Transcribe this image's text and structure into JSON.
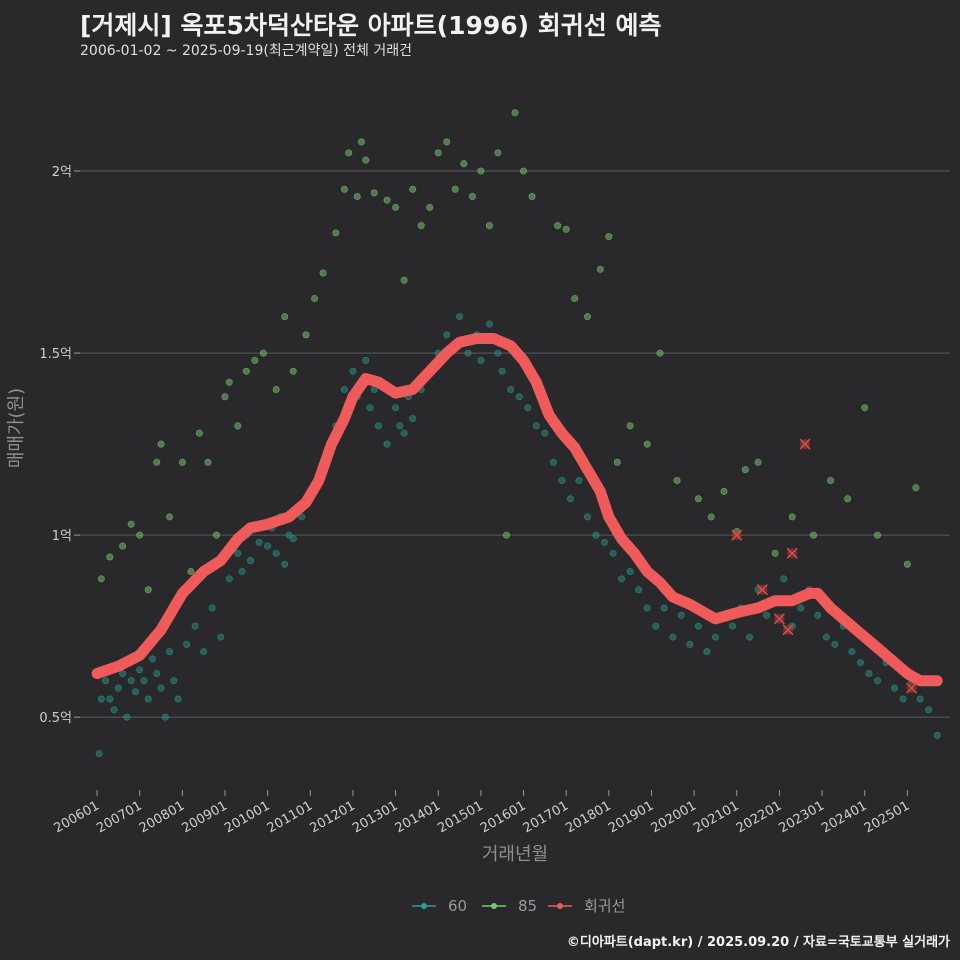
{
  "header": {
    "title": "[거제시] 옥포5차덕산타운 아파트(1996) 회귀선 예측",
    "subtitle": "2006-01-02 ~ 2025-09-19(최근계약일) 전체 거래건"
  },
  "footer": {
    "credit": "©디아파트(dapt.kr) / 2025.09.20 / 자료=국토교통부 실거래가"
  },
  "chart_data": {
    "type": "scatter",
    "xlabel": "거래년월",
    "ylabel": "매매가(원)",
    "x_ticks": [
      "200601",
      "200701",
      "200801",
      "200901",
      "201001",
      "201101",
      "201201",
      "201301",
      "201401",
      "201501",
      "201601",
      "201701",
      "201801",
      "201901",
      "202001",
      "202101",
      "202201",
      "202301",
      "202401",
      "202501"
    ],
    "y_ticks": [
      {
        "value": 0.5,
        "label": "0.5억"
      },
      {
        "value": 1.0,
        "label": "1억"
      },
      {
        "value": 1.5,
        "label": "1.5억"
      },
      {
        "value": 2.0,
        "label": "2억"
      }
    ],
    "xlim": [
      2005.6,
      2026.0
    ],
    "ylim": [
      0.3,
      2.25
    ],
    "grid": true,
    "legend_position": "bottom",
    "colors": {
      "s60": "#2a9d8f",
      "s85": "#7bc96f",
      "regression": "#ef5b5b"
    },
    "series": [
      {
        "name": "60",
        "type": "scatter",
        "points": [
          [
            2006.05,
            0.4
          ],
          [
            2006.1,
            0.55
          ],
          [
            2006.2,
            0.6
          ],
          [
            2006.3,
            0.55
          ],
          [
            2006.4,
            0.52
          ],
          [
            2006.5,
            0.58
          ],
          [
            2006.6,
            0.62
          ],
          [
            2006.7,
            0.5
          ],
          [
            2006.8,
            0.6
          ],
          [
            2006.9,
            0.57
          ],
          [
            2007.0,
            0.63
          ],
          [
            2007.1,
            0.6
          ],
          [
            2007.2,
            0.55
          ],
          [
            2007.3,
            0.66
          ],
          [
            2007.4,
            0.62
          ],
          [
            2007.5,
            0.58
          ],
          [
            2007.6,
            0.5
          ],
          [
            2007.7,
            0.68
          ],
          [
            2007.8,
            0.6
          ],
          [
            2007.9,
            0.55
          ],
          [
            2008.1,
            0.7
          ],
          [
            2008.3,
            0.75
          ],
          [
            2008.5,
            0.68
          ],
          [
            2008.7,
            0.8
          ],
          [
            2008.9,
            0.72
          ],
          [
            2009.1,
            0.88
          ],
          [
            2009.3,
            0.95
          ],
          [
            2009.4,
            0.9
          ],
          [
            2009.5,
            1.0
          ],
          [
            2009.6,
            0.93
          ],
          [
            2009.8,
            0.98
          ],
          [
            2010.0,
            0.97
          ],
          [
            2010.1,
            1.02
          ],
          [
            2010.2,
            0.95
          ],
          [
            2010.3,
            1.05
          ],
          [
            2010.4,
            0.92
          ],
          [
            2010.5,
            1.0
          ],
          [
            2010.6,
            0.99
          ],
          [
            2010.8,
            1.05
          ],
          [
            2011.0,
            1.1
          ],
          [
            2011.2,
            1.15
          ],
          [
            2011.4,
            1.2
          ],
          [
            2011.6,
            1.3
          ],
          [
            2011.8,
            1.4
          ],
          [
            2012.0,
            1.45
          ],
          [
            2012.1,
            1.38
          ],
          [
            2012.2,
            1.42
          ],
          [
            2012.3,
            1.48
          ],
          [
            2012.4,
            1.35
          ],
          [
            2012.5,
            1.4
          ],
          [
            2012.6,
            1.3
          ],
          [
            2012.8,
            1.25
          ],
          [
            2013.0,
            1.35
          ],
          [
            2013.1,
            1.3
          ],
          [
            2013.2,
            1.28
          ],
          [
            2013.3,
            1.38
          ],
          [
            2013.4,
            1.32
          ],
          [
            2013.6,
            1.4
          ],
          [
            2013.8,
            1.45
          ],
          [
            2014.0,
            1.5
          ],
          [
            2014.2,
            1.55
          ],
          [
            2014.4,
            1.52
          ],
          [
            2014.5,
            1.6
          ],
          [
            2014.7,
            1.5
          ],
          [
            2014.9,
            1.55
          ],
          [
            2015.0,
            1.48
          ],
          [
            2015.2,
            1.58
          ],
          [
            2015.4,
            1.5
          ],
          [
            2015.5,
            1.45
          ],
          [
            2015.7,
            1.4
          ],
          [
            2015.9,
            1.38
          ],
          [
            2016.1,
            1.35
          ],
          [
            2016.3,
            1.3
          ],
          [
            2016.5,
            1.28
          ],
          [
            2016.7,
            1.2
          ],
          [
            2016.9,
            1.15
          ],
          [
            2017.1,
            1.1
          ],
          [
            2017.3,
            1.15
          ],
          [
            2017.5,
            1.05
          ],
          [
            2017.7,
            1.0
          ],
          [
            2017.9,
            0.98
          ],
          [
            2018.1,
            0.95
          ],
          [
            2018.3,
            0.88
          ],
          [
            2018.5,
            0.9
          ],
          [
            2018.7,
            0.85
          ],
          [
            2018.9,
            0.8
          ],
          [
            2019.1,
            0.75
          ],
          [
            2019.3,
            0.8
          ],
          [
            2019.5,
            0.72
          ],
          [
            2019.7,
            0.78
          ],
          [
            2019.9,
            0.7
          ],
          [
            2020.1,
            0.75
          ],
          [
            2020.3,
            0.68
          ],
          [
            2020.5,
            0.72
          ],
          [
            2020.7,
            0.78
          ],
          [
            2020.9,
            0.75
          ],
          [
            2021.1,
            0.8
          ],
          [
            2021.3,
            0.72
          ],
          [
            2021.5,
            0.85
          ],
          [
            2021.7,
            0.78
          ],
          [
            2021.9,
            0.82
          ],
          [
            2022.1,
            0.88
          ],
          [
            2022.3,
            0.75
          ],
          [
            2022.5,
            0.8
          ],
          [
            2022.7,
            0.85
          ],
          [
            2022.9,
            0.78
          ],
          [
            2023.1,
            0.72
          ],
          [
            2023.3,
            0.7
          ],
          [
            2023.5,
            0.75
          ],
          [
            2023.7,
            0.68
          ],
          [
            2023.9,
            0.65
          ],
          [
            2024.1,
            0.62
          ],
          [
            2024.3,
            0.6
          ],
          [
            2024.5,
            0.65
          ],
          [
            2024.7,
            0.58
          ],
          [
            2024.9,
            0.55
          ],
          [
            2025.1,
            0.6
          ],
          [
            2025.3,
            0.55
          ],
          [
            2025.5,
            0.52
          ],
          [
            2025.7,
            0.45
          ]
        ]
      },
      {
        "name": "85",
        "type": "scatter",
        "points": [
          [
            2006.1,
            0.88
          ],
          [
            2006.3,
            0.94
          ],
          [
            2006.6,
            0.97
          ],
          [
            2006.8,
            1.03
          ],
          [
            2007.0,
            1.0
          ],
          [
            2007.2,
            0.85
          ],
          [
            2007.4,
            1.2
          ],
          [
            2007.5,
            1.25
          ],
          [
            2007.7,
            1.05
          ],
          [
            2008.0,
            1.2
          ],
          [
            2008.2,
            0.9
          ],
          [
            2008.4,
            1.28
          ],
          [
            2008.6,
            1.2
          ],
          [
            2008.8,
            1.0
          ],
          [
            2009.0,
            1.38
          ],
          [
            2009.1,
            1.42
          ],
          [
            2009.3,
            1.3
          ],
          [
            2009.5,
            1.45
          ],
          [
            2009.7,
            1.48
          ],
          [
            2009.9,
            1.5
          ],
          [
            2010.2,
            1.4
          ],
          [
            2010.4,
            1.6
          ],
          [
            2010.6,
            1.45
          ],
          [
            2010.9,
            1.55
          ],
          [
            2011.1,
            1.65
          ],
          [
            2011.3,
            1.72
          ],
          [
            2011.6,
            1.83
          ],
          [
            2011.8,
            1.95
          ],
          [
            2011.9,
            2.05
          ],
          [
            2012.1,
            1.93
          ],
          [
            2012.2,
            2.08
          ],
          [
            2012.3,
            2.03
          ],
          [
            2012.5,
            1.94
          ],
          [
            2012.8,
            1.92
          ],
          [
            2013.0,
            1.9
          ],
          [
            2013.2,
            1.7
          ],
          [
            2013.4,
            1.95
          ],
          [
            2013.6,
            1.85
          ],
          [
            2013.8,
            1.9
          ],
          [
            2014.0,
            2.05
          ],
          [
            2014.2,
            2.08
          ],
          [
            2014.4,
            1.95
          ],
          [
            2014.6,
            2.02
          ],
          [
            2014.8,
            1.93
          ],
          [
            2015.0,
            2.0
          ],
          [
            2015.2,
            1.85
          ],
          [
            2015.4,
            2.05
          ],
          [
            2015.6,
            1.0
          ],
          [
            2015.8,
            2.16
          ],
          [
            2016.0,
            2.0
          ],
          [
            2016.2,
            1.93
          ],
          [
            2016.8,
            1.85
          ],
          [
            2017.0,
            1.84
          ],
          [
            2017.2,
            1.65
          ],
          [
            2017.5,
            1.6
          ],
          [
            2017.8,
            1.73
          ],
          [
            2018.0,
            1.82
          ],
          [
            2018.2,
            1.2
          ],
          [
            2018.5,
            1.3
          ],
          [
            2018.9,
            1.25
          ],
          [
            2019.2,
            1.5
          ],
          [
            2019.6,
            1.15
          ],
          [
            2020.1,
            1.1
          ],
          [
            2020.4,
            1.05
          ],
          [
            2020.7,
            1.12
          ],
          [
            2021.0,
            1.01
          ],
          [
            2021.2,
            1.18
          ],
          [
            2021.5,
            1.2
          ],
          [
            2021.9,
            0.95
          ],
          [
            2022.3,
            1.05
          ],
          [
            2022.8,
            1.0
          ],
          [
            2023.2,
            1.15
          ],
          [
            2023.6,
            1.1
          ],
          [
            2024.0,
            1.35
          ],
          [
            2024.3,
            1.0
          ],
          [
            2025.0,
            0.92
          ],
          [
            2025.2,
            1.13
          ]
        ]
      },
      {
        "name": "회귀선",
        "type": "line",
        "points": [
          [
            2006.0,
            0.62
          ],
          [
            2006.5,
            0.64
          ],
          [
            2007.0,
            0.67
          ],
          [
            2007.5,
            0.74
          ],
          [
            2008.0,
            0.84
          ],
          [
            2008.5,
            0.9
          ],
          [
            2008.9,
            0.93
          ],
          [
            2009.3,
            0.99
          ],
          [
            2009.6,
            1.02
          ],
          [
            2010.0,
            1.03
          ],
          [
            2010.5,
            1.05
          ],
          [
            2010.9,
            1.09
          ],
          [
            2011.2,
            1.15
          ],
          [
            2011.5,
            1.25
          ],
          [
            2011.8,
            1.32
          ],
          [
            2012.0,
            1.38
          ],
          [
            2012.3,
            1.43
          ],
          [
            2012.6,
            1.42
          ],
          [
            2013.0,
            1.39
          ],
          [
            2013.4,
            1.4
          ],
          [
            2013.8,
            1.45
          ],
          [
            2014.2,
            1.5
          ],
          [
            2014.5,
            1.53
          ],
          [
            2014.9,
            1.54
          ],
          [
            2015.3,
            1.54
          ],
          [
            2015.7,
            1.52
          ],
          [
            2016.0,
            1.48
          ],
          [
            2016.3,
            1.42
          ],
          [
            2016.6,
            1.33
          ],
          [
            2016.9,
            1.28
          ],
          [
            2017.2,
            1.24
          ],
          [
            2017.5,
            1.18
          ],
          [
            2017.8,
            1.12
          ],
          [
            2018.0,
            1.05
          ],
          [
            2018.3,
            0.99
          ],
          [
            2018.6,
            0.95
          ],
          [
            2018.9,
            0.9
          ],
          [
            2019.2,
            0.87
          ],
          [
            2019.5,
            0.83
          ],
          [
            2019.9,
            0.81
          ],
          [
            2020.2,
            0.79
          ],
          [
            2020.5,
            0.77
          ],
          [
            2020.8,
            0.78
          ],
          [
            2021.1,
            0.79
          ],
          [
            2021.5,
            0.8
          ],
          [
            2021.9,
            0.82
          ],
          [
            2022.3,
            0.82
          ],
          [
            2022.7,
            0.84
          ],
          [
            2022.9,
            0.84
          ],
          [
            2023.2,
            0.8
          ],
          [
            2023.5,
            0.77
          ],
          [
            2023.8,
            0.74
          ],
          [
            2024.1,
            0.71
          ],
          [
            2024.4,
            0.68
          ],
          [
            2024.7,
            0.65
          ],
          [
            2025.0,
            0.62
          ],
          [
            2025.3,
            0.6
          ],
          [
            2025.7,
            0.6
          ]
        ]
      }
    ],
    "highlight_points": [
      [
        2021.0,
        1.0
      ],
      [
        2021.6,
        0.85
      ],
      [
        2022.0,
        0.77
      ],
      [
        2022.3,
        0.95
      ],
      [
        2022.2,
        0.74
      ],
      [
        2022.6,
        1.25
      ],
      [
        2025.1,
        0.58
      ]
    ]
  }
}
